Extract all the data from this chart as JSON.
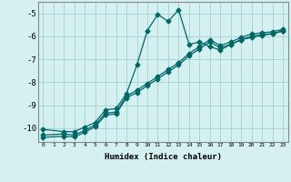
{
  "xlabel": "Humidex (Indice chaleur)",
  "background_color": "#d4f0f0",
  "grid_color": "#aad4d4",
  "line_color": "#006666",
  "xlim": [
    -0.5,
    23.5
  ],
  "ylim": [
    -10.6,
    -4.5
  ],
  "yticks": [
    -10,
    -9,
    -8,
    -7,
    -6,
    -5
  ],
  "xticks": [
    0,
    1,
    2,
    3,
    4,
    5,
    6,
    7,
    8,
    9,
    10,
    11,
    12,
    13,
    14,
    15,
    16,
    17,
    18,
    19,
    20,
    21,
    22,
    23
  ],
  "series1_x": [
    0,
    2,
    3,
    4,
    5,
    6,
    7,
    8,
    9,
    10,
    11,
    12,
    13,
    14,
    15,
    16,
    17,
    18,
    19,
    20,
    21,
    22,
    23
  ],
  "series1_y": [
    -10.05,
    -10.15,
    -10.15,
    -9.95,
    -9.75,
    -9.2,
    -9.15,
    -8.5,
    -7.25,
    -5.75,
    -5.05,
    -5.35,
    -4.85,
    -6.35,
    -6.25,
    -6.45,
    -6.6,
    -6.35,
    -6.15,
    -6.05,
    -5.95,
    -5.9,
    -5.75
  ],
  "series2_x": [
    0,
    2,
    3,
    4,
    5,
    6,
    7,
    8,
    9,
    10,
    11,
    12,
    13,
    14,
    15,
    16,
    17,
    18,
    19,
    20,
    21,
    22,
    23
  ],
  "series2_y": [
    -10.3,
    -10.25,
    -10.3,
    -10.1,
    -9.85,
    -9.35,
    -9.3,
    -8.6,
    -8.35,
    -8.05,
    -7.75,
    -7.45,
    -7.15,
    -6.75,
    -6.45,
    -6.15,
    -6.4,
    -6.25,
    -6.05,
    -5.9,
    -5.85,
    -5.8,
    -5.7
  ],
  "series3_x": [
    0,
    2,
    3,
    4,
    5,
    6,
    7,
    8,
    9,
    10,
    11,
    12,
    13,
    14,
    15,
    16,
    17,
    18,
    19,
    20,
    21,
    22,
    23
  ],
  "series3_y": [
    -10.4,
    -10.35,
    -10.38,
    -10.18,
    -9.93,
    -9.43,
    -9.38,
    -8.68,
    -8.45,
    -8.15,
    -7.85,
    -7.55,
    -7.25,
    -6.85,
    -6.55,
    -6.25,
    -6.5,
    -6.35,
    -6.15,
    -6.0,
    -5.93,
    -5.88,
    -5.78
  ],
  "marker_size": 2.5,
  "line_width": 0.9
}
